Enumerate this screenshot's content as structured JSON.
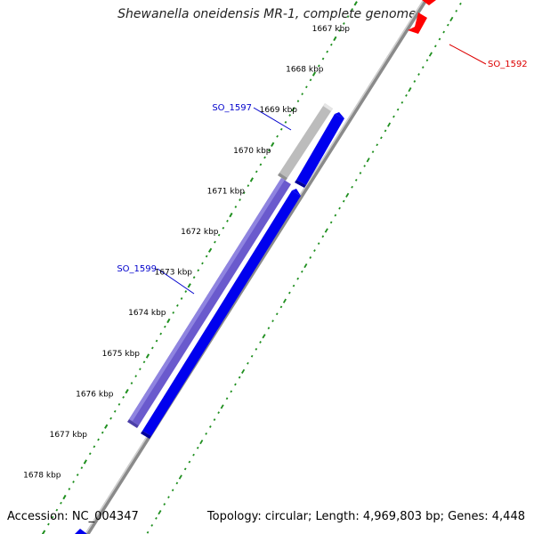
{
  "title": "Shewanella oneidensis MR-1, complete genome",
  "footer": {
    "accession": "Accession: NC_004347",
    "summary": "Topology: circular; Length: 4,969,803 bp; Genes: 4,448"
  },
  "colors": {
    "backbone": "#888888",
    "ticks": "#1f8f1f",
    "forward_gene": "#0000ee",
    "reverse_gene": "#6a5acd",
    "grey_gene": "#c8c8c8",
    "red_gene": "#ff0000",
    "label_blue": "#0000cc",
    "label_red": "#dd0000"
  },
  "scale_ticks": [
    {
      "kbp": 1667,
      "label": "1667 kbp"
    },
    {
      "kbp": 1668,
      "label": "1668 kbp"
    },
    {
      "kbp": 1669,
      "label": "1669 kbp"
    },
    {
      "kbp": 1670,
      "label": "1670 kbp"
    },
    {
      "kbp": 1671,
      "label": "1671 kbp"
    },
    {
      "kbp": 1672,
      "label": "1672 kbp"
    },
    {
      "kbp": 1673,
      "label": "1673 kbp"
    },
    {
      "kbp": 1674,
      "label": "1674 kbp"
    },
    {
      "kbp": 1675,
      "label": "1675 kbp"
    },
    {
      "kbp": 1676,
      "label": "1676 kbp"
    },
    {
      "kbp": 1677,
      "label": "1677 kbp"
    },
    {
      "kbp": 1678,
      "label": "1678 kbp"
    }
  ],
  "gene_labels": [
    {
      "name": "SO_1597",
      "color": "#0000cc"
    },
    {
      "name": "SO_1599",
      "color": "#0000cc"
    },
    {
      "name": "SO_1592",
      "color": "#dd0000"
    }
  ]
}
